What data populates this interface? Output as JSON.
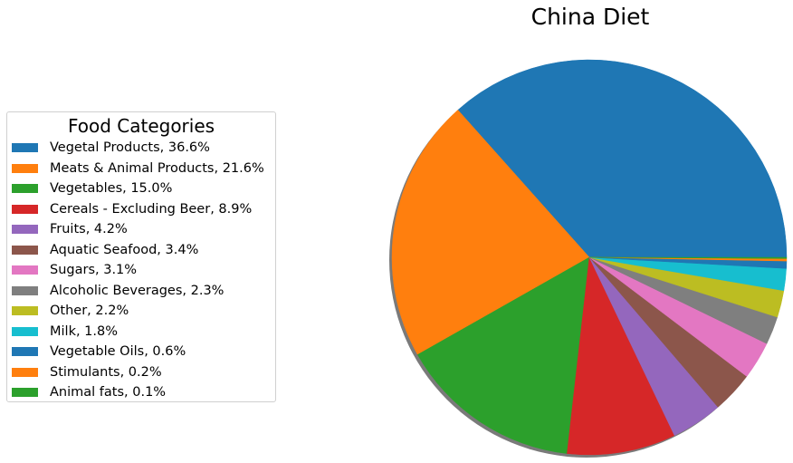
{
  "chart_data": {
    "type": "pie",
    "title": "China Diet",
    "legend_title": "Food Categories",
    "legend_position": "center-left",
    "shadow": true,
    "start_angle_deg": 0,
    "direction": "counterclockwise",
    "slices": [
      {
        "label": "Vegetal Products",
        "value": 36.6,
        "legend": "Vegetal Products, 36.6%",
        "color": "#1f77b4"
      },
      {
        "label": "Meats & Animal Products",
        "value": 21.6,
        "legend": "Meats & Animal Products, 21.6%",
        "color": "#ff7f0e"
      },
      {
        "label": "Vegetables",
        "value": 15.0,
        "legend": "Vegetables, 15.0%",
        "color": "#2ca02c"
      },
      {
        "label": "Cereals - Excluding Beer",
        "value": 8.9,
        "legend": "Cereals - Excluding Beer, 8.9%",
        "color": "#d62728"
      },
      {
        "label": "Fruits",
        "value": 4.2,
        "legend": "Fruits, 4.2%",
        "color": "#9467bd"
      },
      {
        "label": "Aquatic Seafood",
        "value": 3.4,
        "legend": "Aquatic Seafood, 3.4%",
        "color": "#8c564b"
      },
      {
        "label": "Sugars",
        "value": 3.1,
        "legend": "Sugars, 3.1%",
        "color": "#e377c2"
      },
      {
        "label": "Alcoholic Beverages",
        "value": 2.3,
        "legend": "Alcoholic Beverages, 2.3%",
        "color": "#7f7f7f"
      },
      {
        "label": "Other",
        "value": 2.2,
        "legend": "Other, 2.2%",
        "color": "#bcbd22"
      },
      {
        "label": "Milk",
        "value": 1.8,
        "legend": "Milk, 1.8%",
        "color": "#17becf"
      },
      {
        "label": "Vegetable Oils",
        "value": 0.6,
        "legend": "Vegetable Oils, 0.6%",
        "color": "#1f77b4"
      },
      {
        "label": "Stimulants",
        "value": 0.2,
        "legend": "Stimulants, 0.2%",
        "color": "#ff7f0e"
      },
      {
        "label": "Animal fats",
        "value": 0.1,
        "legend": "Animal fats, 0.1%",
        "color": "#2ca02c"
      }
    ]
  }
}
